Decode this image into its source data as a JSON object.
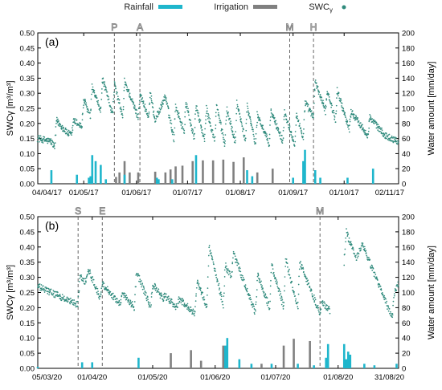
{
  "legend": {
    "rain_label": "Rainfall",
    "irr_label": "Irrigation",
    "swc_label": "SWC",
    "swc_sub": "γ",
    "colors": {
      "rain": "#1fb6cc",
      "irr": "#808080",
      "swc": "#2f8a7c",
      "event": "#8a8a8a"
    }
  },
  "chart_data": [
    {
      "type": "bar+scatter",
      "panel_label": "(a)",
      "ylabel_left": "SWCγ [m³/m³]",
      "ylabel_right": "Water amount [mm/day]",
      "ylim_left": [
        0,
        0.5
      ],
      "ylim_right": [
        0,
        200
      ],
      "yticks_left": [
        "0.00",
        "0.05",
        "0.10",
        "0.15",
        "0.20",
        "0.25",
        "0.30",
        "0.35",
        "0.40",
        "0.45",
        "0.50"
      ],
      "yticks_right": [
        "0",
        "20",
        "40",
        "60",
        "80",
        "100",
        "120",
        "140",
        "160",
        "180",
        "200"
      ],
      "x_start": "2017-04-04",
      "x_end": "2017-11-02",
      "xticks": [
        {
          "date": "2017-04-04",
          "label": "04/04/17"
        },
        {
          "date": "2017-05-01",
          "label": "01/05/17"
        },
        {
          "date": "2017-06-01",
          "label": "01/06/17"
        },
        {
          "date": "2017-07-01",
          "label": "01/07/17"
        },
        {
          "date": "2017-08-01",
          "label": "01/08/17"
        },
        {
          "date": "2017-09-01",
          "label": "01/09/17"
        },
        {
          "date": "2017-10-01",
          "label": "01/10/17"
        },
        {
          "date": "2017-11-02",
          "label": "02/11/17"
        }
      ],
      "events": [
        {
          "date": "2017-05-19",
          "label": "P"
        },
        {
          "date": "2017-06-03",
          "label": "A"
        },
        {
          "date": "2017-08-30",
          "label": "M"
        },
        {
          "date": "2017-09-13",
          "label": "H"
        }
      ],
      "swc_anchors": [
        [
          "2017-04-04",
          0.15
        ],
        [
          "2017-04-12",
          0.14
        ],
        [
          "2017-04-14",
          0.12
        ],
        [
          "2017-04-15",
          0.21
        ],
        [
          "2017-04-21",
          0.17
        ],
        [
          "2017-04-24",
          0.16
        ],
        [
          "2017-04-25",
          0.21
        ],
        [
          "2017-04-30",
          0.19
        ],
        [
          "2017-05-01",
          0.28
        ],
        [
          "2017-05-05",
          0.22
        ],
        [
          "2017-05-06",
          0.32
        ],
        [
          "2017-05-11",
          0.24
        ],
        [
          "2017-05-12",
          0.35
        ],
        [
          "2017-05-18",
          0.23
        ],
        [
          "2017-05-19",
          0.33
        ],
        [
          "2017-05-24",
          0.22
        ],
        [
          "2017-05-25",
          0.34
        ],
        [
          "2017-06-02",
          0.22
        ],
        [
          "2017-06-03",
          0.3
        ],
        [
          "2017-06-08",
          0.22
        ],
        [
          "2017-06-09",
          0.3
        ],
        [
          "2017-06-12",
          0.21
        ],
        [
          "2017-06-18",
          0.29
        ],
        [
          "2017-06-23",
          0.15
        ],
        [
          "2017-06-24",
          0.26
        ],
        [
          "2017-06-29",
          0.17
        ],
        [
          "2017-06-30",
          0.27
        ],
        [
          "2017-07-05",
          0.15
        ],
        [
          "2017-07-06",
          0.26
        ],
        [
          "2017-07-11",
          0.14
        ],
        [
          "2017-07-12",
          0.25
        ],
        [
          "2017-07-17",
          0.14
        ],
        [
          "2017-07-18",
          0.26
        ],
        [
          "2017-07-23",
          0.13
        ],
        [
          "2017-07-24",
          0.25
        ],
        [
          "2017-07-29",
          0.14
        ],
        [
          "2017-07-30",
          0.27
        ],
        [
          "2017-08-04",
          0.14
        ],
        [
          "2017-08-05",
          0.26
        ],
        [
          "2017-08-10",
          0.13
        ],
        [
          "2017-08-11",
          0.23
        ],
        [
          "2017-08-18",
          0.13
        ],
        [
          "2017-08-19",
          0.24
        ],
        [
          "2017-08-26",
          0.14
        ],
        [
          "2017-08-27",
          0.24
        ],
        [
          "2017-09-02",
          0.13
        ],
        [
          "2017-09-03",
          0.23
        ],
        [
          "2017-09-07",
          0.15
        ],
        [
          "2017-09-08",
          0.27
        ],
        [
          "2017-09-13",
          0.22
        ],
        [
          "2017-09-14",
          0.34
        ],
        [
          "2017-09-20",
          0.24
        ],
        [
          "2017-09-21",
          0.31
        ],
        [
          "2017-09-26",
          0.21
        ],
        [
          "2017-09-27",
          0.31
        ],
        [
          "2017-10-04",
          0.18
        ],
        [
          "2017-10-05",
          0.24
        ],
        [
          "2017-10-15",
          0.16
        ],
        [
          "2017-10-16",
          0.22
        ],
        [
          "2017-10-25",
          0.16
        ],
        [
          "2017-11-02",
          0.14
        ]
      ],
      "rainfall": [
        [
          "2017-04-12",
          18
        ],
        [
          "2017-04-27",
          12
        ],
        [
          "2017-05-04",
          8
        ],
        [
          "2017-05-05",
          10
        ],
        [
          "2017-05-06",
          38
        ],
        [
          "2017-05-08",
          30
        ],
        [
          "2017-05-11",
          25
        ],
        [
          "2017-05-14",
          6
        ],
        [
          "2017-05-25",
          12
        ],
        [
          "2017-06-13",
          8
        ],
        [
          "2017-06-14",
          6
        ],
        [
          "2017-06-22",
          6
        ],
        [
          "2017-07-06",
          38
        ],
        [
          "2017-08-05",
          18
        ],
        [
          "2017-08-08",
          10
        ],
        [
          "2017-09-01",
          8
        ],
        [
          "2017-09-07",
          30
        ],
        [
          "2017-09-08",
          45
        ],
        [
          "2017-09-14",
          18
        ],
        [
          "2017-09-17",
          8
        ],
        [
          "2017-10-03",
          8
        ],
        [
          "2017-10-18",
          20
        ]
      ],
      "irrigation": [
        [
          "2017-05-20",
          9
        ],
        [
          "2017-05-22",
          15
        ],
        [
          "2017-05-25",
          30
        ],
        [
          "2017-05-28",
          15
        ],
        [
          "2017-06-02",
          15
        ],
        [
          "2017-06-12",
          16
        ],
        [
          "2017-06-18",
          15
        ],
        [
          "2017-06-21",
          19
        ],
        [
          "2017-06-24",
          23
        ],
        [
          "2017-06-28",
          24
        ],
        [
          "2017-07-04",
          30
        ],
        [
          "2017-07-10",
          31
        ],
        [
          "2017-07-16",
          31
        ],
        [
          "2017-07-22",
          32
        ],
        [
          "2017-07-28",
          29
        ],
        [
          "2017-08-03",
          35
        ],
        [
          "2017-08-11",
          15
        ],
        [
          "2017-08-20",
          20
        ]
      ]
    },
    {
      "type": "bar+scatter",
      "panel_label": "(b)",
      "ylabel_left": "SWCγ [m³/m³]",
      "ylabel_right": "Water amount [mm/day]",
      "ylim_left": [
        0,
        0.5
      ],
      "ylim_right": [
        0,
        200
      ],
      "yticks_left": [
        "0.00",
        "0.05",
        "0.10",
        "0.15",
        "0.20",
        "0.25",
        "0.30",
        "0.35",
        "0.40",
        "0.45",
        "0.50"
      ],
      "yticks_right": [
        "0",
        "20",
        "40",
        "60",
        "80",
        "100",
        "120",
        "140",
        "160",
        "180",
        "200"
      ],
      "x_start": "2020-03-05",
      "x_end": "2020-08-31",
      "xticks": [
        {
          "date": "2020-03-05",
          "label": "05/03/20"
        },
        {
          "date": "2020-04-01",
          "label": "01/04/20"
        },
        {
          "date": "2020-05-01",
          "label": "01/05/20"
        },
        {
          "date": "2020-06-01",
          "label": "01/06/20"
        },
        {
          "date": "2020-07-01",
          "label": "01/07/20"
        },
        {
          "date": "2020-08-01",
          "label": "01/08/20"
        },
        {
          "date": "2020-08-31",
          "label": "31/08/20"
        }
      ],
      "events": [
        {
          "date": "2020-03-25",
          "label": "S"
        },
        {
          "date": "2020-04-06",
          "label": "E"
        },
        {
          "date": "2020-07-23",
          "label": "M"
        }
      ],
      "swc_anchors": [
        [
          "2020-03-05",
          0.27
        ],
        [
          "2020-03-25",
          0.21
        ],
        [
          "2020-03-26",
          0.31
        ],
        [
          "2020-03-29",
          0.28
        ],
        [
          "2020-03-30",
          0.33
        ],
        [
          "2020-04-05",
          0.23
        ],
        [
          "2020-04-06",
          0.28
        ],
        [
          "2020-04-15",
          0.21
        ],
        [
          "2020-04-16",
          0.25
        ],
        [
          "2020-04-22",
          0.2
        ],
        [
          "2020-04-23",
          0.32
        ],
        [
          "2020-04-30",
          0.2
        ],
        [
          "2020-05-01",
          0.28
        ],
        [
          "2020-05-06",
          0.23
        ],
        [
          "2020-05-07",
          0.24
        ],
        [
          "2020-05-13",
          0.2
        ],
        [
          "2020-05-14",
          0.23
        ],
        [
          "2020-05-22",
          0.18
        ],
        [
          "2020-05-23",
          0.29
        ],
        [
          "2020-05-28",
          0.2
        ],
        [
          "2020-05-29",
          0.4
        ],
        [
          "2020-06-05",
          0.21
        ],
        [
          "2020-06-06",
          0.34
        ],
        [
          "2020-06-09",
          0.3
        ],
        [
          "2020-06-10",
          0.38
        ],
        [
          "2020-06-21",
          0.18
        ],
        [
          "2020-06-22",
          0.31
        ],
        [
          "2020-06-28",
          0.2
        ],
        [
          "2020-06-29",
          0.34
        ],
        [
          "2020-07-05",
          0.2
        ],
        [
          "2020-07-06",
          0.36
        ],
        [
          "2020-07-12",
          0.2
        ],
        [
          "2020-07-13",
          0.35
        ],
        [
          "2020-07-23",
          0.18
        ],
        [
          "2020-07-24",
          0.22
        ],
        [
          "2020-07-28",
          0.19
        ],
        [
          "2020-07-31",
          null
        ],
        [
          "2020-08-04",
          0.35
        ],
        [
          "2020-08-05",
          0.45
        ],
        [
          "2020-08-10",
          0.36
        ],
        [
          "2020-08-13",
          0.41
        ],
        [
          "2020-08-27",
          0.18
        ],
        [
          "2020-08-28",
          0.17
        ],
        [
          "2020-08-29",
          0.25
        ],
        [
          "2020-08-31",
          0.28
        ]
      ],
      "rainfall": [
        [
          "2020-03-05",
          2
        ],
        [
          "2020-03-27",
          8
        ],
        [
          "2020-04-01",
          8
        ],
        [
          "2020-04-24",
          14
        ],
        [
          "2020-06-06",
          30
        ],
        [
          "2020-06-07",
          40
        ],
        [
          "2020-06-13",
          12
        ],
        [
          "2020-06-19",
          6
        ],
        [
          "2020-06-29",
          6
        ],
        [
          "2020-07-12",
          6
        ],
        [
          "2020-07-20",
          4
        ],
        [
          "2020-07-26",
          14
        ],
        [
          "2020-07-27",
          32
        ],
        [
          "2020-08-04",
          32
        ],
        [
          "2020-08-05",
          12
        ],
        [
          "2020-08-06",
          22
        ],
        [
          "2020-08-07",
          18
        ],
        [
          "2020-08-14",
          6
        ],
        [
          "2020-08-19",
          4
        ],
        [
          "2020-08-30",
          6
        ]
      ],
      "irrigation": [
        [
          "2020-05-10",
          20
        ],
        [
          "2020-05-20",
          24
        ],
        [
          "2020-05-25",
          10
        ],
        [
          "2020-06-05",
          30
        ],
        [
          "2020-06-24",
          6
        ],
        [
          "2020-07-05",
          30
        ],
        [
          "2020-07-10",
          39
        ],
        [
          "2020-07-18",
          36
        ]
      ]
    }
  ]
}
